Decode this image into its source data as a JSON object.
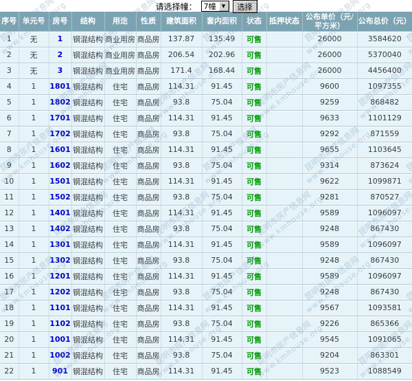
{
  "controls": {
    "label": "请选择幢：",
    "select_value": "7幢",
    "button_label": "选择"
  },
  "watermark": {
    "line1": "昆明市房产信息网",
    "line2": "www.kmhouse.org"
  },
  "colors": {
    "header_bg": "#7ca3b2",
    "row_bg": "#e6f4fa",
    "link_blue": "#0000cc",
    "status_green": "#009900"
  },
  "table": {
    "headers": [
      "序号",
      "单元号",
      "房号",
      "结构",
      "用途",
      "性质",
      "建筑面积",
      "套内面积",
      "状态",
      "抵押状态",
      "公布单价（元/平方米）",
      "公布总价（元）"
    ],
    "rows": [
      {
        "seq": "1",
        "unit": "无",
        "room": "1",
        "structure": "钢混结构",
        "usage": "商业用房",
        "nature": "商品房",
        "area": "137.87",
        "inner_area": "135.49",
        "status": "可售",
        "mortgage": "",
        "unit_price": "26000",
        "total_price": "3584620"
      },
      {
        "seq": "2",
        "unit": "无",
        "room": "2",
        "structure": "钢混结构",
        "usage": "商业用房",
        "nature": "商品房",
        "area": "206.54",
        "inner_area": "202.96",
        "status": "可售",
        "mortgage": "",
        "unit_price": "26000",
        "total_price": "5370040"
      },
      {
        "seq": "3",
        "unit": "无",
        "room": "3",
        "structure": "钢混结构",
        "usage": "商业用房",
        "nature": "商品房",
        "area": "171.4",
        "inner_area": "168.44",
        "status": "可售",
        "mortgage": "",
        "unit_price": "26000",
        "total_price": "4456400"
      },
      {
        "seq": "4",
        "unit": "1",
        "room": "1801",
        "structure": "钢混结构",
        "usage": "住宅",
        "nature": "商品房",
        "area": "114.31",
        "inner_area": "91.45",
        "status": "可售",
        "mortgage": "",
        "unit_price": "9600",
        "total_price": "1097355"
      },
      {
        "seq": "5",
        "unit": "1",
        "room": "1802",
        "structure": "钢混结构",
        "usage": "住宅",
        "nature": "商品房",
        "area": "93.8",
        "inner_area": "75.04",
        "status": "可售",
        "mortgage": "",
        "unit_price": "9259",
        "total_price": "868482"
      },
      {
        "seq": "6",
        "unit": "1",
        "room": "1701",
        "structure": "钢混结构",
        "usage": "住宅",
        "nature": "商品房",
        "area": "114.31",
        "inner_area": "91.45",
        "status": "可售",
        "mortgage": "",
        "unit_price": "9633",
        "total_price": "1101129"
      },
      {
        "seq": "7",
        "unit": "1",
        "room": "1702",
        "structure": "钢混结构",
        "usage": "住宅",
        "nature": "商品房",
        "area": "93.8",
        "inner_area": "75.04",
        "status": "可售",
        "mortgage": "",
        "unit_price": "9292",
        "total_price": "871559"
      },
      {
        "seq": "8",
        "unit": "1",
        "room": "1601",
        "structure": "钢混结构",
        "usage": "住宅",
        "nature": "商品房",
        "area": "114.31",
        "inner_area": "91.45",
        "status": "可售",
        "mortgage": "",
        "unit_price": "9655",
        "total_price": "1103645"
      },
      {
        "seq": "9",
        "unit": "1",
        "room": "1602",
        "structure": "钢混结构",
        "usage": "住宅",
        "nature": "商品房",
        "area": "93.8",
        "inner_area": "75.04",
        "status": "可售",
        "mortgage": "",
        "unit_price": "9314",
        "total_price": "873624"
      },
      {
        "seq": "10",
        "unit": "1",
        "room": "1501",
        "structure": "钢混结构",
        "usage": "住宅",
        "nature": "商品房",
        "area": "114.31",
        "inner_area": "91.45",
        "status": "可售",
        "mortgage": "",
        "unit_price": "9622",
        "total_price": "1099871"
      },
      {
        "seq": "11",
        "unit": "1",
        "room": "1502",
        "structure": "钢混结构",
        "usage": "住宅",
        "nature": "商品房",
        "area": "93.8",
        "inner_area": "75.04",
        "status": "可售",
        "mortgage": "",
        "unit_price": "9281",
        "total_price": "870527"
      },
      {
        "seq": "12",
        "unit": "1",
        "room": "1401",
        "structure": "钢混结构",
        "usage": "住宅",
        "nature": "商品房",
        "area": "114.31",
        "inner_area": "91.45",
        "status": "可售",
        "mortgage": "",
        "unit_price": "9589",
        "total_price": "1096097"
      },
      {
        "seq": "13",
        "unit": "1",
        "room": "1402",
        "structure": "钢混结构",
        "usage": "住宅",
        "nature": "商品房",
        "area": "93.8",
        "inner_area": "75.04",
        "status": "可售",
        "mortgage": "",
        "unit_price": "9248",
        "total_price": "867430"
      },
      {
        "seq": "14",
        "unit": "1",
        "room": "1301",
        "structure": "钢混结构",
        "usage": "住宅",
        "nature": "商品房",
        "area": "114.31",
        "inner_area": "91.45",
        "status": "可售",
        "mortgage": "",
        "unit_price": "9589",
        "total_price": "1096097"
      },
      {
        "seq": "15",
        "unit": "1",
        "room": "1302",
        "structure": "钢混结构",
        "usage": "住宅",
        "nature": "商品房",
        "area": "93.8",
        "inner_area": "75.04",
        "status": "可售",
        "mortgage": "",
        "unit_price": "9248",
        "total_price": "867430"
      },
      {
        "seq": "16",
        "unit": "1",
        "room": "1201",
        "structure": "钢混结构",
        "usage": "住宅",
        "nature": "商品房",
        "area": "114.31",
        "inner_area": "91.45",
        "status": "可售",
        "mortgage": "",
        "unit_price": "9589",
        "total_price": "1096097"
      },
      {
        "seq": "17",
        "unit": "1",
        "room": "1202",
        "structure": "钢混结构",
        "usage": "住宅",
        "nature": "商品房",
        "area": "93.8",
        "inner_area": "75.04",
        "status": "可售",
        "mortgage": "",
        "unit_price": "9248",
        "total_price": "867430"
      },
      {
        "seq": "18",
        "unit": "1",
        "room": "1101",
        "structure": "钢混结构",
        "usage": "住宅",
        "nature": "商品房",
        "area": "114.31",
        "inner_area": "91.45",
        "status": "可售",
        "mortgage": "",
        "unit_price": "9567",
        "total_price": "1093581"
      },
      {
        "seq": "19",
        "unit": "1",
        "room": "1102",
        "structure": "钢混结构",
        "usage": "住宅",
        "nature": "商品房",
        "area": "93.8",
        "inner_area": "75.04",
        "status": "可售",
        "mortgage": "",
        "unit_price": "9226",
        "total_price": "865366"
      },
      {
        "seq": "20",
        "unit": "1",
        "room": "1001",
        "structure": "钢混结构",
        "usage": "住宅",
        "nature": "商品房",
        "area": "114.31",
        "inner_area": "91.45",
        "status": "可售",
        "mortgage": "",
        "unit_price": "9545",
        "total_price": "1091065"
      },
      {
        "seq": "21",
        "unit": "1",
        "room": "1002",
        "structure": "钢混结构",
        "usage": "住宅",
        "nature": "商品房",
        "area": "93.8",
        "inner_area": "75.04",
        "status": "可售",
        "mortgage": "",
        "unit_price": "9204",
        "total_price": "863301"
      },
      {
        "seq": "22",
        "unit": "1",
        "room": "901",
        "structure": "钢混结构",
        "usage": "住宅",
        "nature": "商品房",
        "area": "114.31",
        "inner_area": "91.45",
        "status": "可售",
        "mortgage": "",
        "unit_price": "9523",
        "total_price": "1088549"
      }
    ]
  }
}
